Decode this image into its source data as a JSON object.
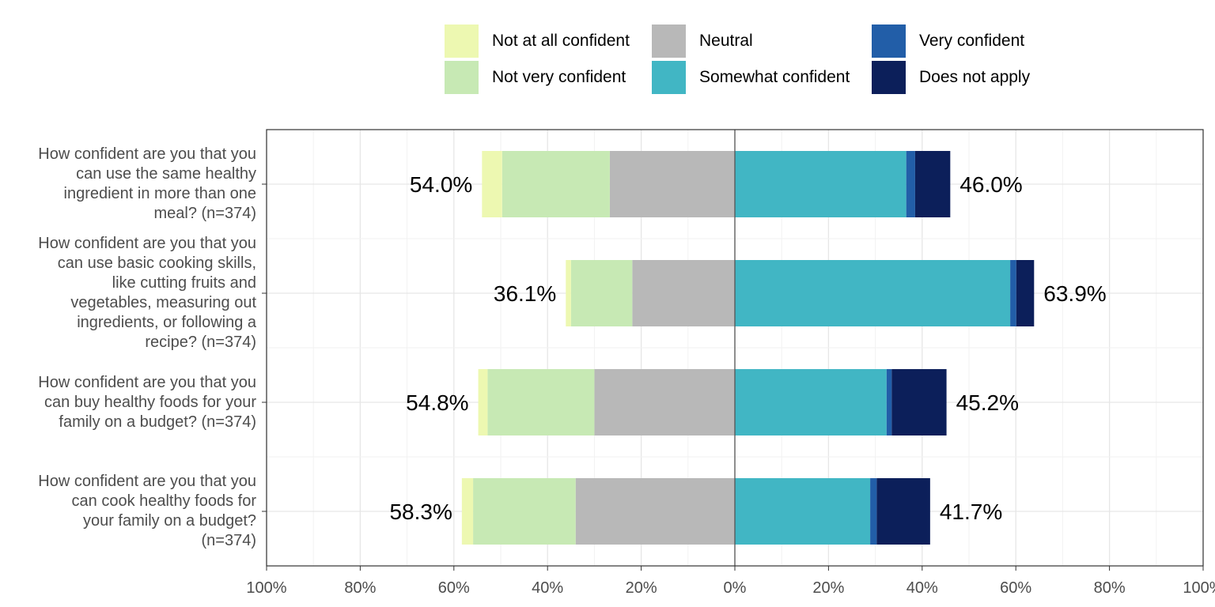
{
  "chart_data": {
    "type": "bar",
    "orientation": "horizontal",
    "stacking": "diverging",
    "categories": [
      "How confident are you that you\ncan use the same healthy\ningredient in more than one\nmeal? (n=374)",
      "How confident are you that you\ncan use basic cooking skills,\nlike cutting fruits and\nvegetables, measuring out\ningredients, or following a\nrecipe? (n=374)",
      "How confident are you that you\ncan buy healthy foods for your\nfamily on a budget? (n=374)",
      "How confident are you that you\ncan cook healthy foods for\nyour family on a budget?\n(n=374)"
    ],
    "series": [
      {
        "name": "Not at all confident",
        "side": "left",
        "color": "#edf8b1",
        "values": [
          4.3,
          1.1,
          2.0,
          2.4
        ]
      },
      {
        "name": "Not very confident",
        "side": "left",
        "color": "#c7e9b4",
        "values": [
          23.0,
          13.1,
          22.8,
          21.9
        ]
      },
      {
        "name": "Neutral",
        "side": "left",
        "color": "#b8b8b8",
        "values": [
          26.7,
          21.9,
          30.0,
          34.0
        ]
      },
      {
        "name": "Somewhat confident",
        "side": "right",
        "color": "#41b6c4",
        "values": [
          36.6,
          58.8,
          32.4,
          28.9
        ]
      },
      {
        "name": "Very confident",
        "side": "right",
        "color": "#225ea8",
        "values": [
          1.9,
          1.3,
          1.1,
          1.4
        ]
      },
      {
        "name": "Does not apply",
        "side": "right",
        "color": "#0c1f5a",
        "values": [
          7.5,
          3.8,
          11.7,
          11.4
        ]
      }
    ],
    "totals_left": [
      "54.0%",
      "36.1%",
      "54.8%",
      "58.3%"
    ],
    "totals_right": [
      "46.0%",
      "63.9%",
      "45.2%",
      "41.7%"
    ],
    "xlim": [
      -100,
      100
    ],
    "xticks": [
      -100,
      -80,
      -60,
      -40,
      -20,
      0,
      20,
      40,
      60,
      80,
      100
    ],
    "xtick_labels": [
      "100%",
      "80%",
      "60%",
      "40%",
      "20%",
      "0%",
      "20%",
      "40%",
      "60%",
      "80%",
      "100%"
    ],
    "grid": true,
    "legend_position": "top",
    "legend_order": [
      "Not at all confident",
      "Not very confident",
      "Neutral",
      "Somewhat confident",
      "Very confident",
      "Does not apply"
    ],
    "title": "",
    "xlabel": "",
    "ylabel": ""
  }
}
